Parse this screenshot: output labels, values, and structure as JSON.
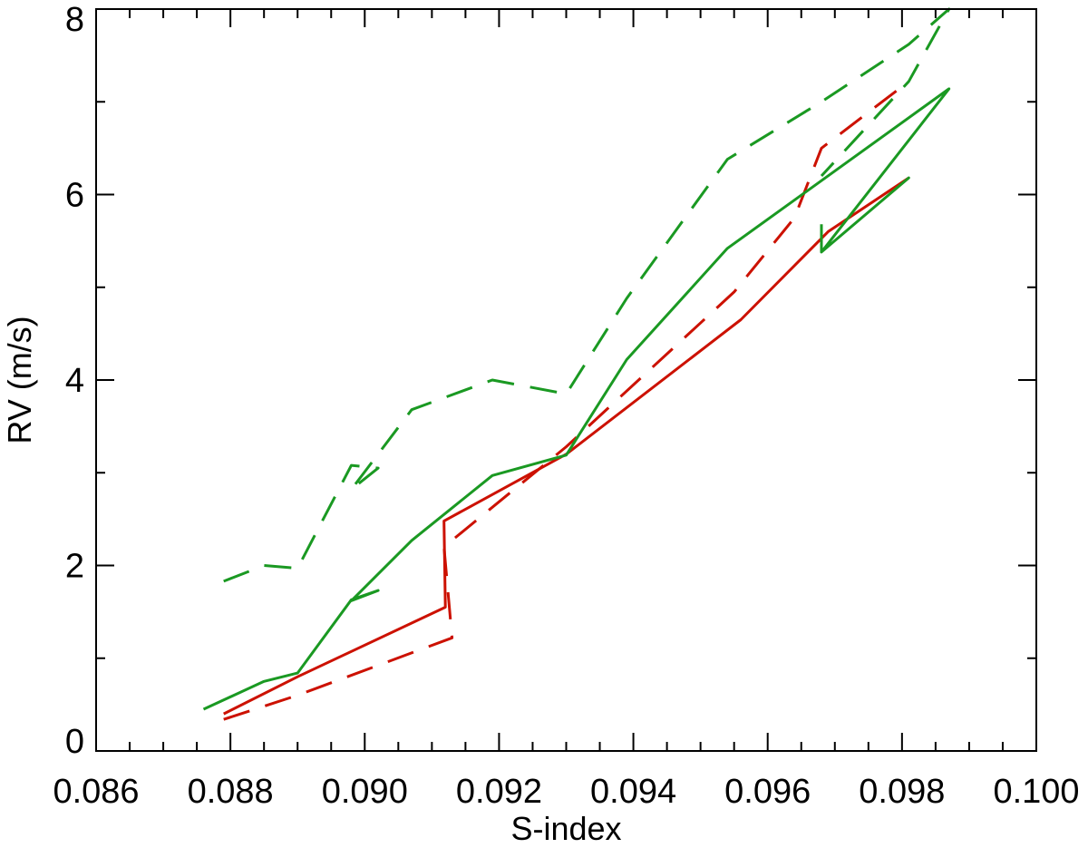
{
  "chart_data": {
    "type": "line",
    "title": "",
    "xlabel": "S-index",
    "ylabel": "RV (m/s)",
    "xlim": [
      0.086,
      0.1
    ],
    "ylim": [
      0,
      8
    ],
    "xticks": [
      0.086,
      0.088,
      0.09,
      0.092,
      0.094,
      0.096,
      0.098,
      0.1
    ],
    "xtick_labels": [
      "0.086",
      "0.088",
      "0.090",
      "0.092",
      "0.094",
      "0.096",
      "0.098",
      "0.100"
    ],
    "yticks": [
      0,
      2,
      4,
      6,
      8
    ],
    "ytick_labels": [
      "0",
      "2",
      "4",
      "6",
      "8"
    ],
    "grid": false,
    "legend": "none",
    "series": [
      {
        "color": "#cc1100",
        "style": "solid",
        "points": [
          [
            0.0879,
            0.4
          ],
          [
            0.089,
            0.8
          ],
          [
            0.0912,
            1.55
          ],
          [
            0.09118,
            2.48
          ],
          [
            0.093,
            3.2
          ],
          [
            0.0956,
            4.65
          ],
          [
            0.0969,
            5.6
          ],
          [
            0.0981,
            6.18
          ]
        ]
      },
      {
        "color": "#cc1100",
        "style": "dashed",
        "points": [
          [
            0.0879,
            0.34
          ],
          [
            0.089,
            0.6
          ],
          [
            0.0913,
            1.22
          ],
          [
            0.09118,
            2.2
          ],
          [
            0.093,
            3.28
          ],
          [
            0.0955,
            4.95
          ],
          [
            0.0964,
            5.75
          ],
          [
            0.0968,
            6.5
          ],
          [
            0.0981,
            7.22
          ]
        ]
      },
      {
        "color": "#1a9922",
        "style": "solid",
        "points": [
          [
            0.0876,
            0.45
          ],
          [
            0.0885,
            0.75
          ],
          [
            0.089,
            0.84
          ],
          [
            0.0898,
            1.63
          ],
          [
            0.0902,
            1.73
          ],
          [
            0.0898,
            1.62
          ],
          [
            0.0907,
            2.27
          ],
          [
            0.0919,
            2.97
          ],
          [
            0.093,
            3.19
          ],
          [
            0.0939,
            4.22
          ],
          [
            0.0954,
            5.42
          ],
          [
            0.0968,
            6.15
          ],
          [
            0.0987,
            7.14
          ],
          [
            0.0968,
            5.38
          ],
          [
            0.0981,
            6.18
          ],
          [
            0.0968,
            5.38
          ],
          [
            0.0968,
            5.68
          ]
        ]
      },
      {
        "color": "#1a9922",
        "style": "dashed",
        "points": [
          [
            0.0879,
            1.83
          ],
          [
            0.0885,
            2.0
          ],
          [
            0.089,
            1.97
          ],
          [
            0.0898,
            3.08
          ],
          [
            0.0902,
            3.05
          ],
          [
            0.0898,
            2.82
          ],
          [
            0.0907,
            3.68
          ],
          [
            0.0919,
            4.0
          ],
          [
            0.093,
            3.85
          ],
          [
            0.0939,
            4.88
          ],
          [
            0.0954,
            6.38
          ],
          [
            0.0968,
            7.0
          ],
          [
            0.0981,
            7.62
          ],
          [
            0.0987,
            8.0
          ],
          [
            0.0981,
            7.22
          ],
          [
            0.0968,
            6.2
          ]
        ]
      }
    ]
  }
}
